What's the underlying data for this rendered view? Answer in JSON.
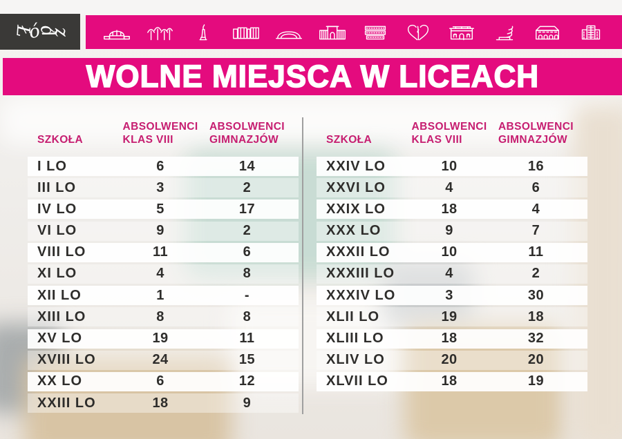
{
  "logo": {
    "text": "Łódź"
  },
  "icon_bar": {
    "icons": [
      "market-hall-icon",
      "tree-canopy-icon",
      "monument-icon",
      "ec1-blocks-icon",
      "arena-icon",
      "gate-building-icon",
      "striped-factory-icon",
      "heart-zipper-icon",
      "palace-icon",
      "spring-bench-icon",
      "manor-arcade-icon",
      "office-tower-icon"
    ]
  },
  "title": "WOLNE MIEJSCA W LICEACH",
  "tables": [
    {
      "headers": {
        "school": "SZKOŁA",
        "col1_line1": "ABSOLWENCI",
        "col1_line2": "KLAS VIII",
        "col2_line1": "ABSOLWENCI",
        "col2_line2": "GIMNAZJÓW"
      },
      "rows": [
        [
          "I LO",
          "6",
          "14"
        ],
        [
          "III LO",
          "3",
          "2"
        ],
        [
          "IV LO",
          "5",
          "17"
        ],
        [
          "VI LO",
          "9",
          "2"
        ],
        [
          "VIII LO",
          "11",
          "6"
        ],
        [
          "XI LO",
          "4",
          "8"
        ],
        [
          "XII LO",
          "1",
          "-"
        ],
        [
          "XIII LO",
          "8",
          "8"
        ],
        [
          "XV LO",
          "19",
          "11"
        ],
        [
          "XVIII LO",
          "24",
          "15"
        ],
        [
          "XX LO",
          "6",
          "12"
        ],
        [
          "XXIII LO",
          "18",
          "9"
        ]
      ]
    },
    {
      "headers": {
        "school": "SZKOŁA",
        "col1_line1": "ABSOLWENCI",
        "col1_line2": "KLAS VIII",
        "col2_line1": "ABSOLWENCI",
        "col2_line2": "GIMNAZJÓW"
      },
      "rows": [
        [
          "XXIV LO",
          "10",
          "16"
        ],
        [
          "XXVI LO",
          "4",
          "6"
        ],
        [
          "XXIX LO",
          "18",
          "4"
        ],
        [
          "XXX LO",
          "9",
          "7"
        ],
        [
          "XXXII LO",
          "10",
          "11"
        ],
        [
          "XXXIII LO",
          "4",
          "2"
        ],
        [
          "XXXIV LO",
          "3",
          "30"
        ],
        [
          "XLII LO",
          "19",
          "18"
        ],
        [
          "XLIII LO",
          "18",
          "32"
        ],
        [
          "XLIV LO",
          "20",
          "20"
        ],
        [
          "XLVII LO",
          "18",
          "19"
        ]
      ]
    }
  ],
  "colors": {
    "pink": "#e40b7e",
    "logo_bg": "#3a3937",
    "header_pink": "#c61d70",
    "row_text": "#2e2d2b",
    "divider": "#9f9f9f"
  }
}
